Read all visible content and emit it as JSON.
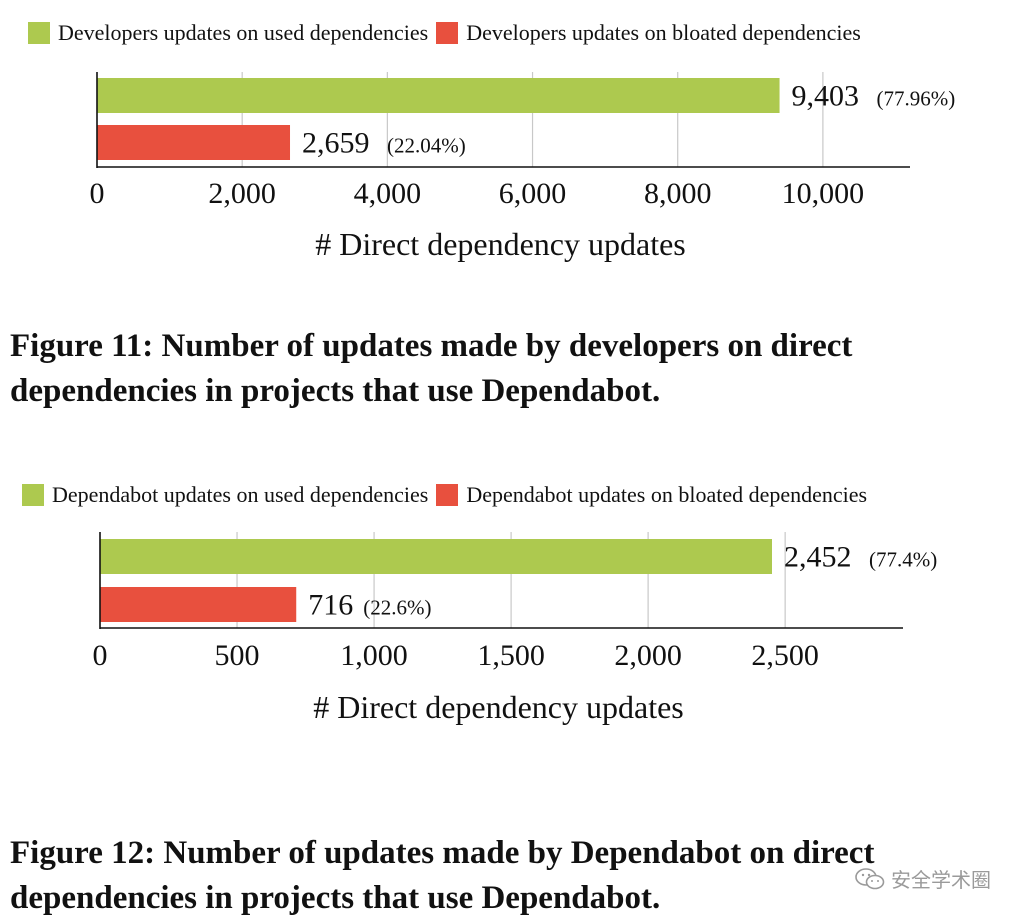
{
  "chart_data": [
    {
      "type": "bar",
      "orientation": "horizontal",
      "series": [
        {
          "name": "Developers updates on used dependencies",
          "values": [
            9403
          ],
          "label": "9,403",
          "percent": "(77.96%)",
          "color": "#adc94f"
        },
        {
          "name": "Developers updates on bloated dependencies",
          "values": [
            2659
          ],
          "label": "2,659",
          "percent": "(22.04%)",
          "color": "#e8503e"
        }
      ],
      "xlabel": "# Direct dependency updates",
      "xlim": [
        0,
        11200
      ],
      "xticks": [
        0,
        2000,
        4000,
        6000,
        8000,
        10000
      ],
      "xtick_labels": [
        "0",
        "2,000",
        "4,000",
        "6,000",
        "8,000",
        "10,000"
      ],
      "grid": true,
      "legend": "top"
    },
    {
      "type": "bar",
      "orientation": "horizontal",
      "series": [
        {
          "name": "Dependabot updates on used dependencies",
          "values": [
            2452
          ],
          "label": "2,452",
          "percent": "(77.4%)",
          "color": "#adc94f"
        },
        {
          "name": "Dependabot updates on bloated dependencies",
          "values": [
            716
          ],
          "label": "716",
          "percent": "(22.6%)",
          "color": "#e8503e"
        }
      ],
      "xlabel": "# Direct dependency updates",
      "xlim": [
        0,
        2930
      ],
      "xticks": [
        0,
        500,
        1000,
        1500,
        2000,
        2500
      ],
      "xtick_labels": [
        "0",
        "500",
        "1,000",
        "1,500",
        "2,000",
        "2,500"
      ],
      "grid": true,
      "legend": "top"
    }
  ],
  "captions": [
    "Figure 11: Number of updates made by developers on direct dependencies in projects that use Dependabot.",
    "Figure 12: Number of updates made by Dependabot on direct dependencies in projects that use Dependabot."
  ],
  "watermark": {
    "text": "安全学术圈",
    "icon": "wechat-icon"
  }
}
